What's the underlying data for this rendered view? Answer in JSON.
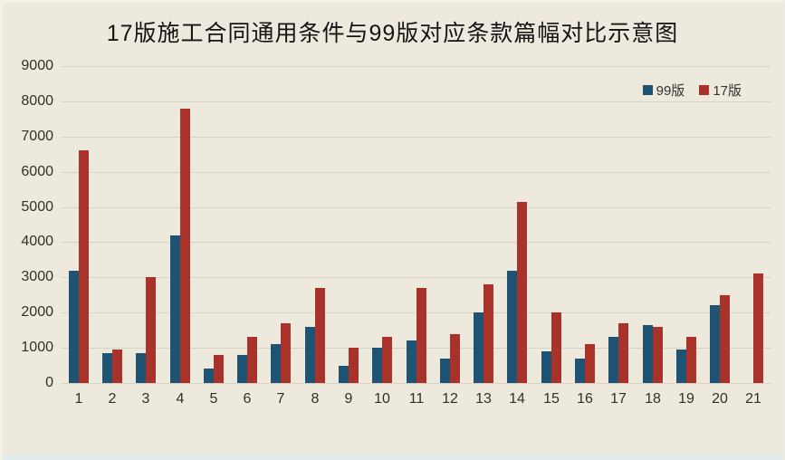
{
  "title": "17版施工合同通用条件与99版对应条款篇幅对比示意图",
  "chart_data": {
    "type": "bar",
    "title": "17版施工合同通用条件与99版对应条款篇幅对比示意图",
    "categories": [
      "1",
      "2",
      "3",
      "4",
      "5",
      "6",
      "7",
      "8",
      "9",
      "10",
      "11",
      "12",
      "13",
      "14",
      "15",
      "16",
      "17",
      "18",
      "19",
      "20",
      "21"
    ],
    "series": [
      {
        "name": "99版",
        "color": "#1F5374",
        "values": [
          3200,
          850,
          850,
          4200,
          400,
          800,
          1100,
          1600,
          500,
          1000,
          1200,
          700,
          2000,
          3200,
          900,
          700,
          1300,
          1650,
          950,
          2200,
          null
        ]
      },
      {
        "name": "17版",
        "color": "#A9332B",
        "values": [
          6600,
          950,
          3000,
          7800,
          800,
          1300,
          1700,
          2700,
          1000,
          1300,
          2700,
          1400,
          2800,
          5150,
          2000,
          1100,
          1700,
          1600,
          1300,
          2500,
          3100
        ]
      }
    ],
    "xlabel": "",
    "ylabel": "",
    "ylim": [
      0,
      9000
    ],
    "yticks": [
      9000,
      8000,
      7000,
      6000,
      5000,
      4000,
      3000,
      2000,
      1000,
      0
    ],
    "grid": true,
    "legend_position": "top-right"
  },
  "colors": {
    "background": "#EDE9DC",
    "gridline": "#D7D3C5",
    "text": "#33302a",
    "series_99": "#1F5374",
    "series_17": "#A9332B"
  }
}
